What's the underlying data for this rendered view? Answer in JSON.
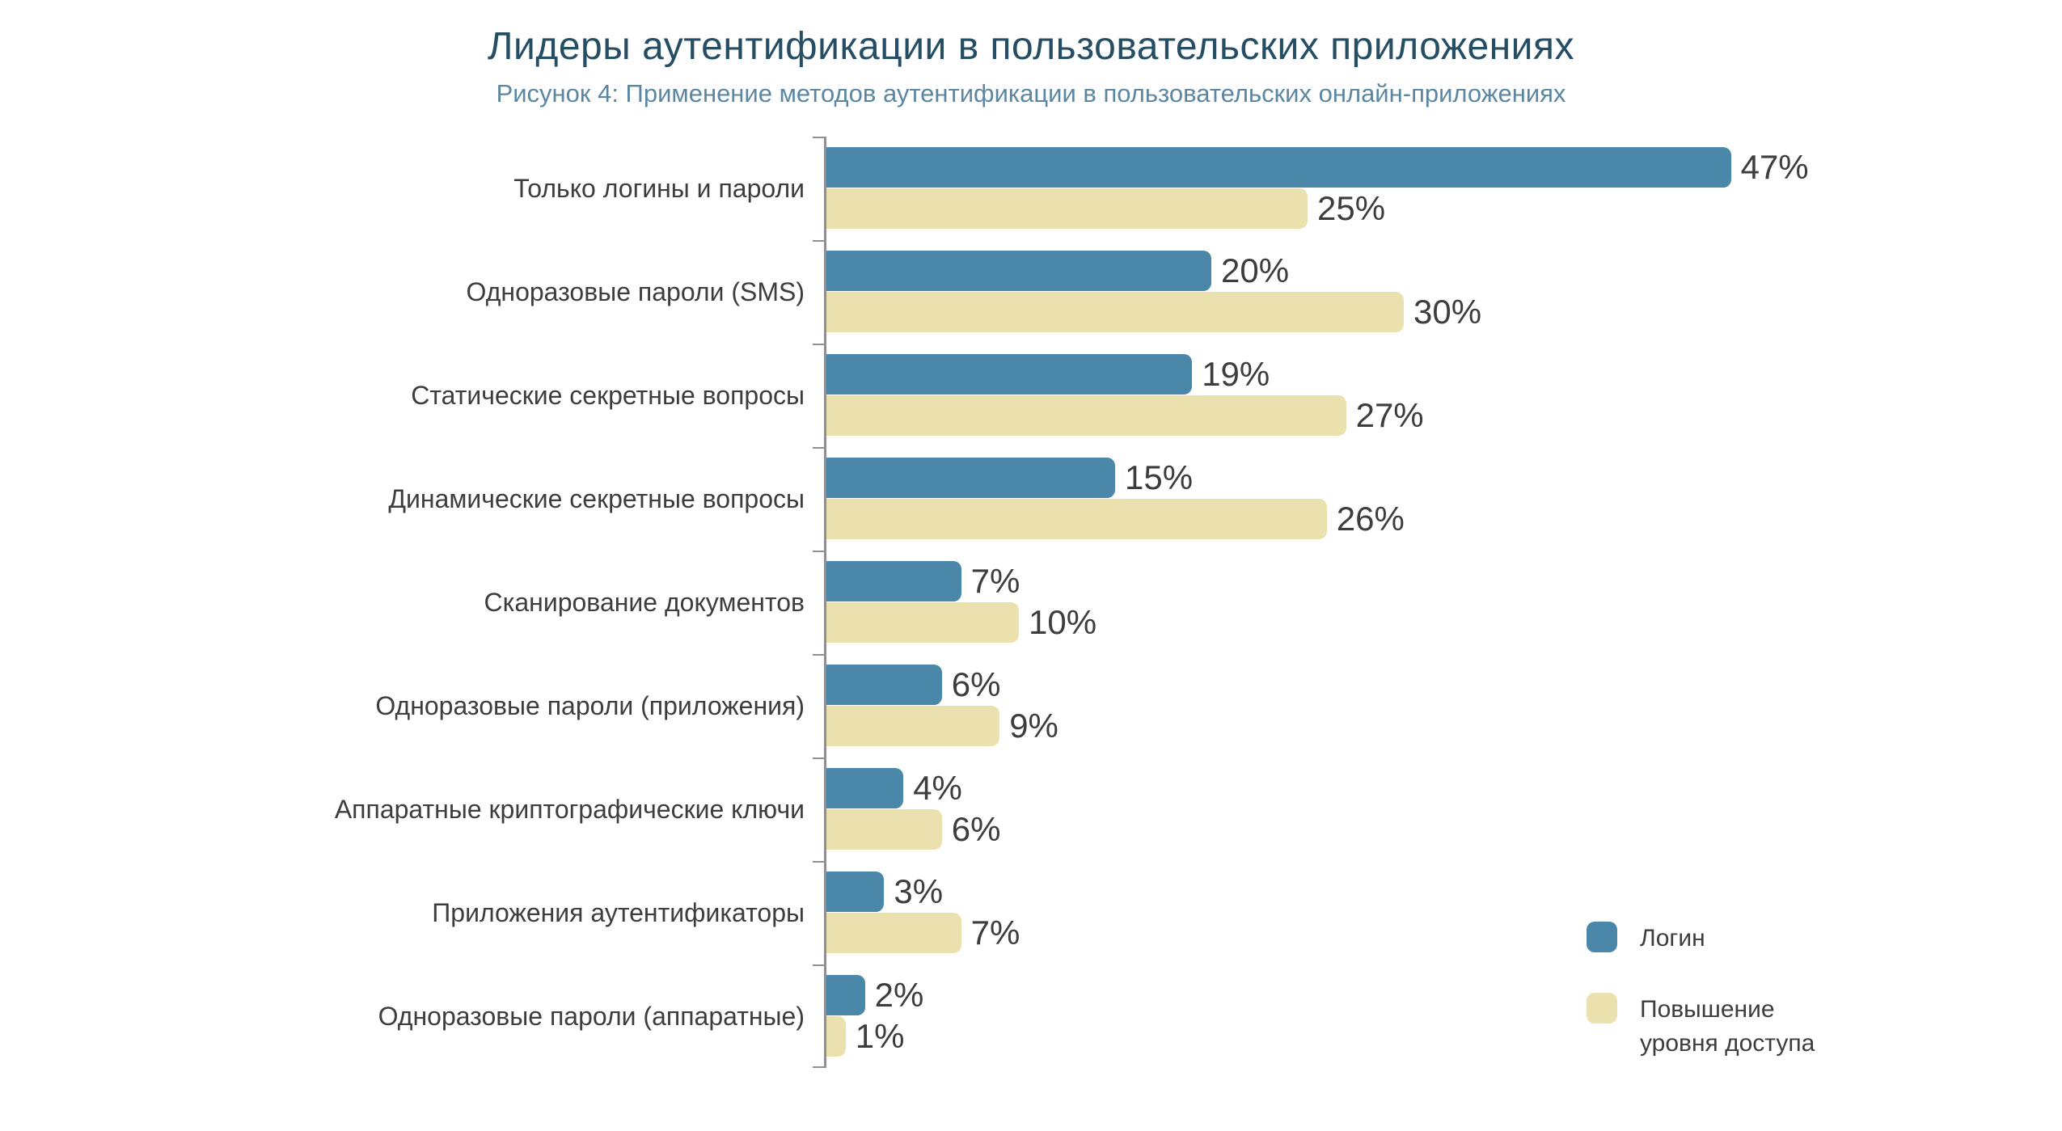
{
  "title": "Лидеры аутентификации в пользовательских приложениях",
  "subtitle": "Рисунок 4: Применение методов аутентификации в пользовательских онлайн-приложениях",
  "colors": {
    "login_blue": "#4a87a8",
    "elevation_beige": "#ebe1ae",
    "title_text": "#254d63",
    "subtitle_text": "#5b87a2",
    "body_text": "#3d3d3d",
    "axis_gray": "#909090",
    "background": "#ffffff"
  },
  "legend": [
    {
      "label": "Логин",
      "color_key": "login_blue"
    },
    {
      "label": "Повышение уровня доступа",
      "color_key": "elevation_beige"
    }
  ],
  "chart_data": {
    "type": "bar",
    "orientation": "horizontal",
    "title": "Лидеры аутентификации в пользовательских приложениях",
    "subtitle": "Рисунок 4: Применение методов аутентификации в пользовательских онлайн-приложениях",
    "categories": [
      "Только логины и пароли",
      "Одноразовые пароли (SMS)",
      "Статические секретные вопросы",
      "Динамические секретные вопросы",
      "Сканирование документов",
      "Одноразовые пароли (приложения)",
      "Аппаратные криптографические ключи",
      "Приложения аутентификаторы",
      "Одноразовые пароли (аппаратные)"
    ],
    "series": [
      {
        "name": "Логин",
        "color_key": "login_blue",
        "values": [
          47,
          20,
          19,
          15,
          7,
          6,
          4,
          3,
          2
        ]
      },
      {
        "name": "Повышение уровня доступа",
        "color_key": "elevation_beige",
        "values": [
          25,
          30,
          27,
          26,
          10,
          9,
          6,
          7,
          1
        ]
      }
    ],
    "value_suffix": "%",
    "xlim": [
      0,
      50
    ],
    "grid": false,
    "legend_position": "bottom-right"
  }
}
